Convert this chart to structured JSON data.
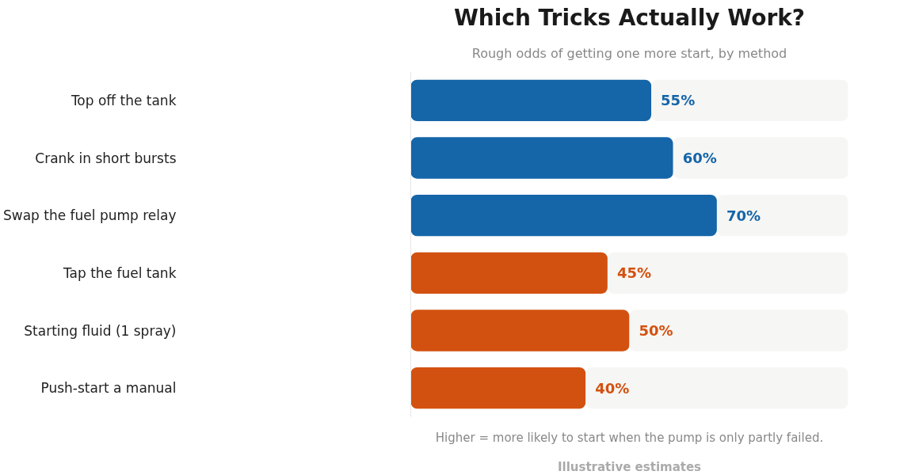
{
  "chart_data": {
    "type": "bar",
    "orientation": "horizontal",
    "stacked": true,
    "title": "Which Tricks Actually Work?",
    "subtitle": "Rough odds of getting one more start, by method",
    "categories": [
      "Top off the tank",
      "Crank in short bursts",
      "Swap the fuel pump relay",
      "Tap the fuel tank",
      "Starting fluid (1 spray)",
      "Push-start a manual"
    ],
    "series": [
      {
        "colors": [
          "#1565a9",
          "#1565a9",
          "#1565a9",
          "#d35110",
          "#d35110",
          "#d35110"
        ],
        "values": [
          55,
          60,
          70,
          45,
          50,
          40
        ],
        "value_labels": [
          "55%",
          "60%",
          "70%",
          "45%",
          "50%",
          "40%"
        ]
      },
      {
        "color": "#f6f6f4",
        "values": [
          45,
          40,
          30,
          55,
          50,
          60
        ]
      }
    ],
    "xlim": [
      0,
      100
    ],
    "tick_labels": "y",
    "grid": false,
    "annotations": [
      "Higher = more likely to start when the pump is only partly failed.",
      "Illustrative estimates"
    ]
  }
}
